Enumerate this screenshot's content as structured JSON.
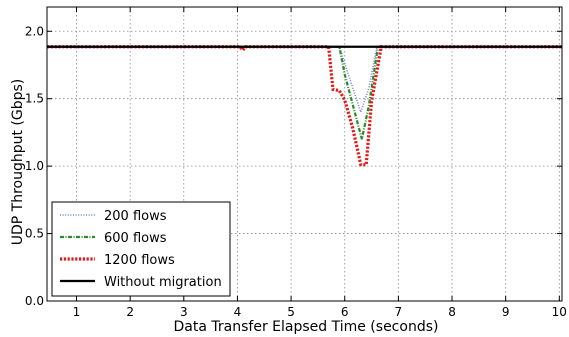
{
  "chart_data": {
    "type": "line",
    "xlabel": "Data Transfer Elapsed Time (seconds)",
    "ylabel": "UDP Throughput (Gbps)",
    "xlim": [
      0.45,
      10.05
    ],
    "ylim": [
      0.0,
      2.18
    ],
    "x_ticks": [
      1,
      2,
      3,
      4,
      5,
      6,
      7,
      8,
      9,
      10
    ],
    "y_ticks": [
      0.0,
      0.5,
      1.0,
      1.5,
      2.0
    ],
    "x_tick_labels": [
      "1",
      "2",
      "3",
      "4",
      "5",
      "6",
      "7",
      "8",
      "9",
      "10"
    ],
    "y_tick_labels": [
      "0.0",
      "0.5",
      "1.0",
      "1.5",
      "2.0"
    ],
    "grid": true,
    "legend_position": "bottom-left",
    "series": [
      {
        "name": "200 flows",
        "color": "#6f7fe0",
        "style": "dotted",
        "points": [
          [
            0.45,
            1.885
          ],
          [
            5.9,
            1.885
          ],
          [
            6.05,
            1.7
          ],
          [
            6.2,
            1.52
          ],
          [
            6.3,
            1.4
          ],
          [
            6.45,
            1.58
          ],
          [
            6.6,
            1.885
          ],
          [
            10.05,
            1.885
          ]
        ]
      },
      {
        "name": "600 flows",
        "color": "#2b8a2b",
        "style": "dashdot",
        "points": [
          [
            0.45,
            1.885
          ],
          [
            5.9,
            1.885
          ],
          [
            6.0,
            1.68
          ],
          [
            6.2,
            1.38
          ],
          [
            6.32,
            1.2
          ],
          [
            6.45,
            1.45
          ],
          [
            6.62,
            1.885
          ],
          [
            10.05,
            1.885
          ]
        ]
      },
      {
        "name": "1200 flows",
        "color": "#e01b1b",
        "style": "dotted-thick",
        "points": [
          [
            0.45,
            1.885
          ],
          [
            4.05,
            1.885
          ],
          [
            4.1,
            1.86
          ],
          [
            4.15,
            1.885
          ],
          [
            5.7,
            1.885
          ],
          [
            5.78,
            1.57
          ],
          [
            5.9,
            1.56
          ],
          [
            6.0,
            1.49
          ],
          [
            6.15,
            1.28
          ],
          [
            6.3,
            1.01
          ],
          [
            6.4,
            1.01
          ],
          [
            6.5,
            1.48
          ],
          [
            6.68,
            1.885
          ],
          [
            10.05,
            1.885
          ]
        ]
      },
      {
        "name": "Without migration",
        "color": "#000000",
        "style": "solid",
        "points": [
          [
            0.45,
            1.885
          ],
          [
            10.05,
            1.885
          ]
        ]
      }
    ]
  }
}
